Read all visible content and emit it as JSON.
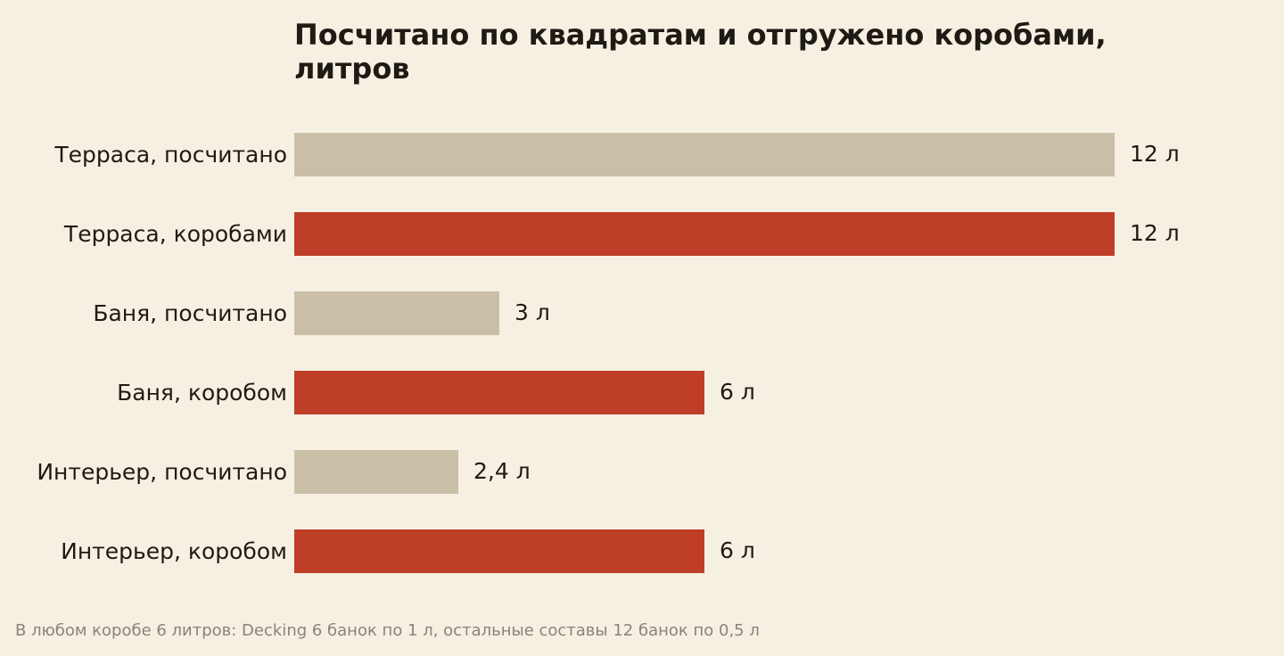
{
  "chart_data": {
    "type": "bar",
    "orientation": "horizontal",
    "title": "Посчитано по квадратам и отгружено коробами, литров",
    "categories": [
      "Терраса, посчитано",
      "Терраса, коробами",
      "Баня, посчитано",
      "Баня, коробом",
      "Интерьер, посчитано",
      "Интерьер, коробом"
    ],
    "values": [
      12,
      12,
      3,
      6,
      2.4,
      6
    ],
    "value_labels": [
      "12 л",
      "12 л",
      "3 л",
      "6 л",
      "2,4 л",
      "6 л"
    ],
    "xlim": [
      0,
      12
    ],
    "grid": false,
    "legend": "none",
    "colors": {
      "calculated": "#c9bfa7",
      "boxed": "#be3e28",
      "background": "#f6f0e3"
    },
    "bar_color_keys": [
      "calculated",
      "boxed",
      "calculated",
      "boxed",
      "calculated",
      "boxed"
    ],
    "footnote": "В любом коробе 6 литров: Decking 6 банок по 1 л, остальные составы 12 банок по 0,5 л"
  }
}
